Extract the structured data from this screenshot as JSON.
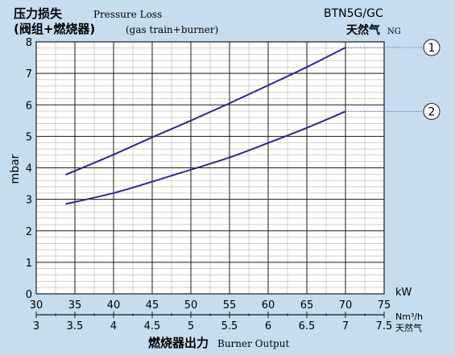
{
  "header": {
    "title_cn": "压力损失",
    "title_en": "Pressure Loss",
    "subtitle_cn": "(阀组+燃烧器)",
    "subtitle_en": "(gas train+burner)",
    "model": "BTN5G/GC",
    "fuel_cn": "天然气",
    "fuel_en": "NG"
  },
  "footer": {
    "xlabel_cn": "燃烧器出力",
    "xlabel_en": "Burner Output"
  },
  "colors": {
    "background": "#c6ddf0",
    "plot_area": "#ffffff",
    "curve": "#2b2a8c",
    "leader": "#4a7fc0",
    "grid": "#b5b5b5",
    "major_grid": "#1b1b1b"
  },
  "chart_data": {
    "type": "line",
    "title": "",
    "xlabel": "kW",
    "x2label": "Nm³/h",
    "x2label_cn": "天然气",
    "ylabel": "mbar",
    "xlim": [
      30,
      75
    ],
    "ylim": [
      0,
      8
    ],
    "x_ticks": [
      "30",
      "35",
      "40",
      "45",
      "50",
      "55",
      "60",
      "65",
      "70",
      "75"
    ],
    "x2_ticks": [
      "3",
      "3.5",
      "4",
      "4.5",
      "5",
      "5.5",
      "6",
      "6.5",
      "7",
      "7.5"
    ],
    "y_ticks": [
      "0",
      "1",
      "2",
      "3",
      "4",
      "5",
      "6",
      "7",
      "8"
    ],
    "grid": true,
    "series": [
      {
        "name": "1",
        "x": [
          33.8,
          40,
          45,
          50,
          55,
          60,
          65,
          70
        ],
        "y": [
          3.78,
          4.42,
          4.97,
          5.5,
          6.05,
          6.62,
          7.2,
          7.82
        ]
      },
      {
        "name": "2",
        "x": [
          33.8,
          40,
          45,
          50,
          55,
          60,
          65,
          70
        ],
        "y": [
          2.85,
          3.2,
          3.56,
          3.94,
          4.33,
          4.79,
          5.27,
          5.79
        ]
      }
    ]
  }
}
